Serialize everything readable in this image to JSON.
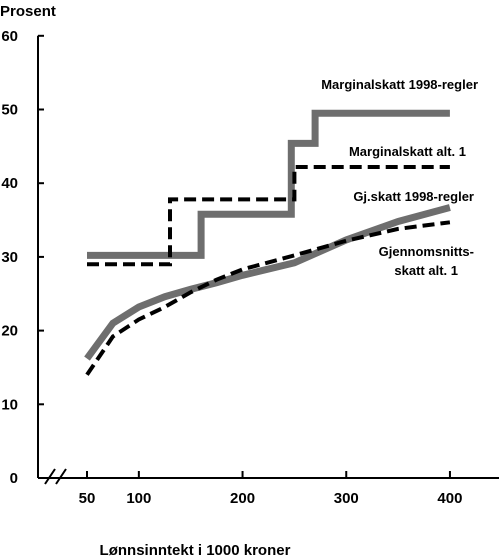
{
  "chart_data": {
    "type": "line",
    "ylabel": "Prosent",
    "xlabel": "Lønnsinntekt i 1000 kroner",
    "xlim": [
      50,
      400
    ],
    "ylim": [
      0,
      60
    ],
    "xticks": [
      50,
      100,
      200,
      300,
      400
    ],
    "yticks": [
      0,
      10,
      20,
      30,
      40,
      50,
      60
    ],
    "axis_break": "x",
    "grid": false,
    "legend": "none",
    "series": [
      {
        "name": "Marginalskatt 1998-regler",
        "style": "solid",
        "color": "#6e6e6e",
        "points": [
          [
            50,
            30.2
          ],
          [
            160,
            30.2
          ],
          [
            160,
            35.8
          ],
          [
            247,
            35.8
          ],
          [
            247,
            45.4
          ],
          [
            270,
            45.4
          ],
          [
            270,
            49.5
          ],
          [
            400,
            49.5
          ]
        ]
      },
      {
        "name": "Marginalskatt alt. 1",
        "style": "dashed",
        "color": "#000000",
        "points": [
          [
            50,
            29.0
          ],
          [
            130,
            29.0
          ],
          [
            130,
            37.8
          ],
          [
            250,
            37.8
          ],
          [
            250,
            42.2
          ],
          [
            400,
            42.2
          ]
        ]
      },
      {
        "name": "Gj.skatt 1998-regler",
        "style": "solid",
        "color": "#6e6e6e",
        "points": [
          [
            50,
            16.2
          ],
          [
            75,
            21.0
          ],
          [
            100,
            23.2
          ],
          [
            125,
            24.6
          ],
          [
            150,
            25.6
          ],
          [
            175,
            26.5
          ],
          [
            200,
            27.5
          ],
          [
            250,
            29.2
          ],
          [
            300,
            32.3
          ],
          [
            350,
            34.8
          ],
          [
            400,
            36.7
          ]
        ]
      },
      {
        "name": "Gjennomsnitts- skatt alt. 1",
        "label_lines": [
          "Gjennomsnitts-",
          "skatt alt. 1"
        ],
        "style": "dashed",
        "color": "#000000",
        "points": [
          [
            50,
            14.0
          ],
          [
            75,
            19.2
          ],
          [
            100,
            21.5
          ],
          [
            125,
            23.2
          ],
          [
            150,
            25.2
          ],
          [
            175,
            26.9
          ],
          [
            200,
            28.3
          ],
          [
            250,
            30.2
          ],
          [
            300,
            32.2
          ],
          [
            350,
            33.8
          ],
          [
            400,
            34.7
          ]
        ]
      }
    ]
  }
}
